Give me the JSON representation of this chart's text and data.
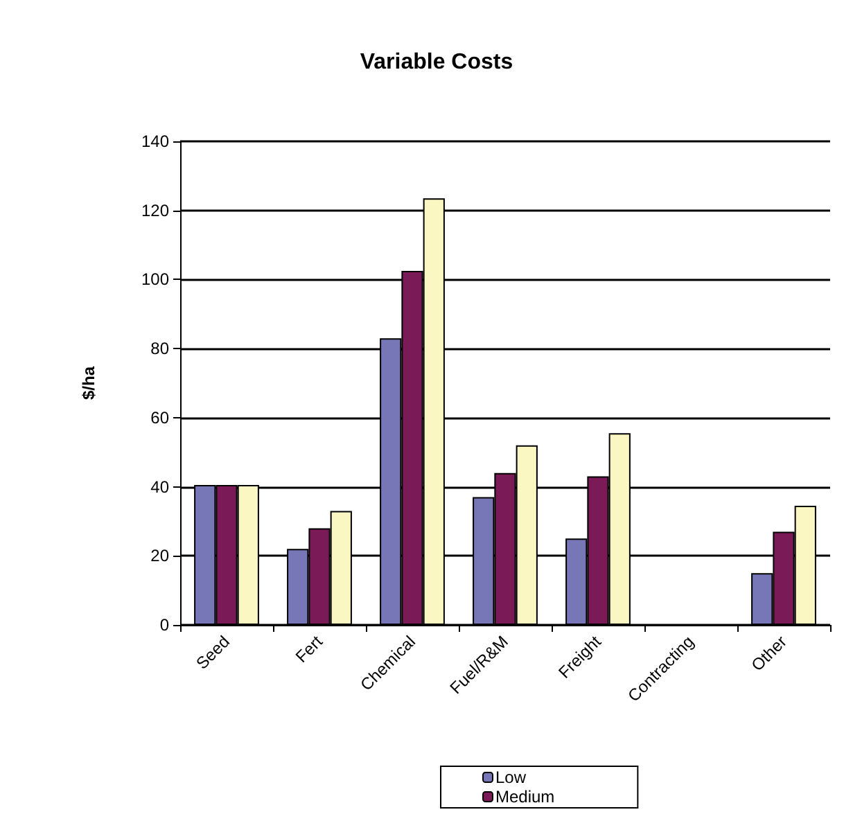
{
  "chart_data": {
    "type": "bar",
    "title": "Variable Costs",
    "ylabel": "$/ha",
    "categories": [
      "Seed",
      "Fert",
      "Chemical",
      "Fuel/R&M",
      "Freight",
      "Contracting",
      "Other"
    ],
    "series": [
      {
        "name": "Low",
        "color": "#7777b8",
        "values": [
          40.5,
          22,
          83,
          37,
          25,
          null,
          15
        ]
      },
      {
        "name": "Medium",
        "color": "#7a1a56",
        "values": [
          40.5,
          28,
          102.5,
          44,
          43,
          null,
          27
        ]
      },
      {
        "color": "#fbf7c2",
        "values": [
          40.5,
          33,
          123.5,
          52,
          55.5,
          null,
          34.5
        ]
      }
    ],
    "ylim": [
      0,
      140
    ],
    "yticks": [
      0,
      20,
      40,
      60,
      80,
      100,
      120,
      140
    ],
    "grid": "y",
    "legend": "bottom"
  }
}
